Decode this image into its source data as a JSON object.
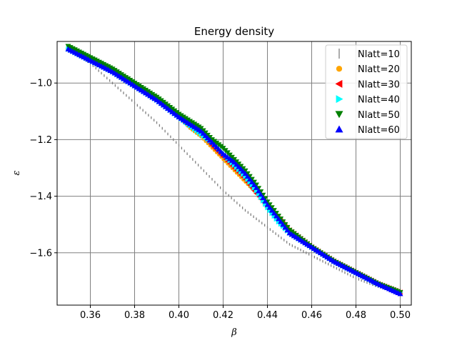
{
  "chart_data": {
    "type": "scatter",
    "title": "Energy density",
    "xlabel": "β",
    "ylabel": "ε",
    "xlim": [
      0.345,
      0.505
    ],
    "ylim": [
      -1.785,
      -0.853
    ],
    "xticks": [
      0.36,
      0.38,
      0.4,
      0.42,
      0.44,
      0.46,
      0.48,
      0.5
    ],
    "xtick_labels": [
      "0.36",
      "0.38",
      "0.40",
      "0.42",
      "0.44",
      "0.46",
      "0.48",
      "0.50"
    ],
    "yticks": [
      -1.0,
      -1.2,
      -1.4,
      -1.6
    ],
    "ytick_labels": [
      "−1.0",
      "−1.2",
      "−1.4",
      "−1.6"
    ],
    "grid": true,
    "legend_position": "top-right",
    "series": [
      {
        "name": "Nlatt=10",
        "color": "#808080",
        "marker": "vline",
        "x": [
          0.35,
          0.36,
          0.37,
          0.38,
          0.39,
          0.4,
          0.41,
          0.42,
          0.43,
          0.44,
          0.45,
          0.46,
          0.47,
          0.48,
          0.49,
          0.5
        ],
        "y": [
          -0.88,
          -0.93,
          -1.0,
          -1.07,
          -1.14,
          -1.22,
          -1.3,
          -1.38,
          -1.45,
          -1.51,
          -1.57,
          -1.61,
          -1.65,
          -1.69,
          -1.72,
          -1.74
        ]
      },
      {
        "name": "Nlatt=20",
        "color": "#ffa500",
        "marker": "circle",
        "x": [
          0.35,
          0.36,
          0.37,
          0.38,
          0.39,
          0.4,
          0.405,
          0.41,
          0.415,
          0.42,
          0.425,
          0.43,
          0.435,
          0.44,
          0.445,
          0.45,
          0.46,
          0.47,
          0.48,
          0.49,
          0.5
        ],
        "y": [
          -0.88,
          -0.92,
          -0.96,
          -1.01,
          -1.06,
          -1.12,
          -1.16,
          -1.19,
          -1.23,
          -1.27,
          -1.31,
          -1.35,
          -1.39,
          -1.43,
          -1.47,
          -1.52,
          -1.58,
          -1.63,
          -1.67,
          -1.71,
          -1.74
        ]
      },
      {
        "name": "Nlatt=30",
        "color": "#ff0000",
        "marker": "triangle-left",
        "x": [
          0.35,
          0.36,
          0.37,
          0.38,
          0.39,
          0.4,
          0.41,
          0.415,
          0.42,
          0.425,
          0.43,
          0.435,
          0.44,
          0.445,
          0.45,
          0.46,
          0.47,
          0.48,
          0.49,
          0.5
        ],
        "y": [
          -0.88,
          -0.92,
          -0.96,
          -1.01,
          -1.06,
          -1.12,
          -1.18,
          -1.22,
          -1.26,
          -1.3,
          -1.34,
          -1.39,
          -1.44,
          -1.48,
          -1.52,
          -1.58,
          -1.63,
          -1.67,
          -1.71,
          -1.74
        ]
      },
      {
        "name": "Nlatt=40",
        "color": "#00ffff",
        "marker": "triangle-right",
        "x": [
          0.35,
          0.36,
          0.37,
          0.38,
          0.39,
          0.4,
          0.41,
          0.415,
          0.42,
          0.425,
          0.43,
          0.435,
          0.44,
          0.445,
          0.45,
          0.46,
          0.47,
          0.48,
          0.49,
          0.5
        ],
        "y": [
          -0.88,
          -0.92,
          -0.96,
          -1.01,
          -1.06,
          -1.12,
          -1.18,
          -1.21,
          -1.25,
          -1.29,
          -1.33,
          -1.38,
          -1.44,
          -1.49,
          -1.53,
          -1.58,
          -1.63,
          -1.67,
          -1.71,
          -1.74
        ]
      },
      {
        "name": "Nlatt=50",
        "color": "#008000",
        "marker": "triangle-down",
        "x": [
          0.35,
          0.36,
          0.37,
          0.38,
          0.39,
          0.4,
          0.41,
          0.415,
          0.42,
          0.425,
          0.43,
          0.435,
          0.44,
          0.445,
          0.45,
          0.46,
          0.47,
          0.48,
          0.49,
          0.5
        ],
        "y": [
          -0.87,
          -0.91,
          -0.95,
          -1.0,
          -1.05,
          -1.11,
          -1.16,
          -1.2,
          -1.23,
          -1.27,
          -1.31,
          -1.36,
          -1.42,
          -1.47,
          -1.52,
          -1.58,
          -1.63,
          -1.67,
          -1.71,
          -1.74
        ]
      },
      {
        "name": "Nlatt=60",
        "color": "#0000ff",
        "marker": "triangle-up",
        "x": [
          0.35,
          0.36,
          0.37,
          0.38,
          0.39,
          0.4,
          0.41,
          0.415,
          0.42,
          0.425,
          0.43,
          0.435,
          0.44,
          0.445,
          0.45,
          0.46,
          0.47,
          0.48,
          0.49,
          0.5
        ],
        "y": [
          -0.88,
          -0.92,
          -0.96,
          -1.01,
          -1.06,
          -1.12,
          -1.17,
          -1.21,
          -1.25,
          -1.28,
          -1.32,
          -1.37,
          -1.43,
          -1.48,
          -1.53,
          -1.58,
          -1.63,
          -1.67,
          -1.71,
          -1.745
        ]
      }
    ]
  }
}
